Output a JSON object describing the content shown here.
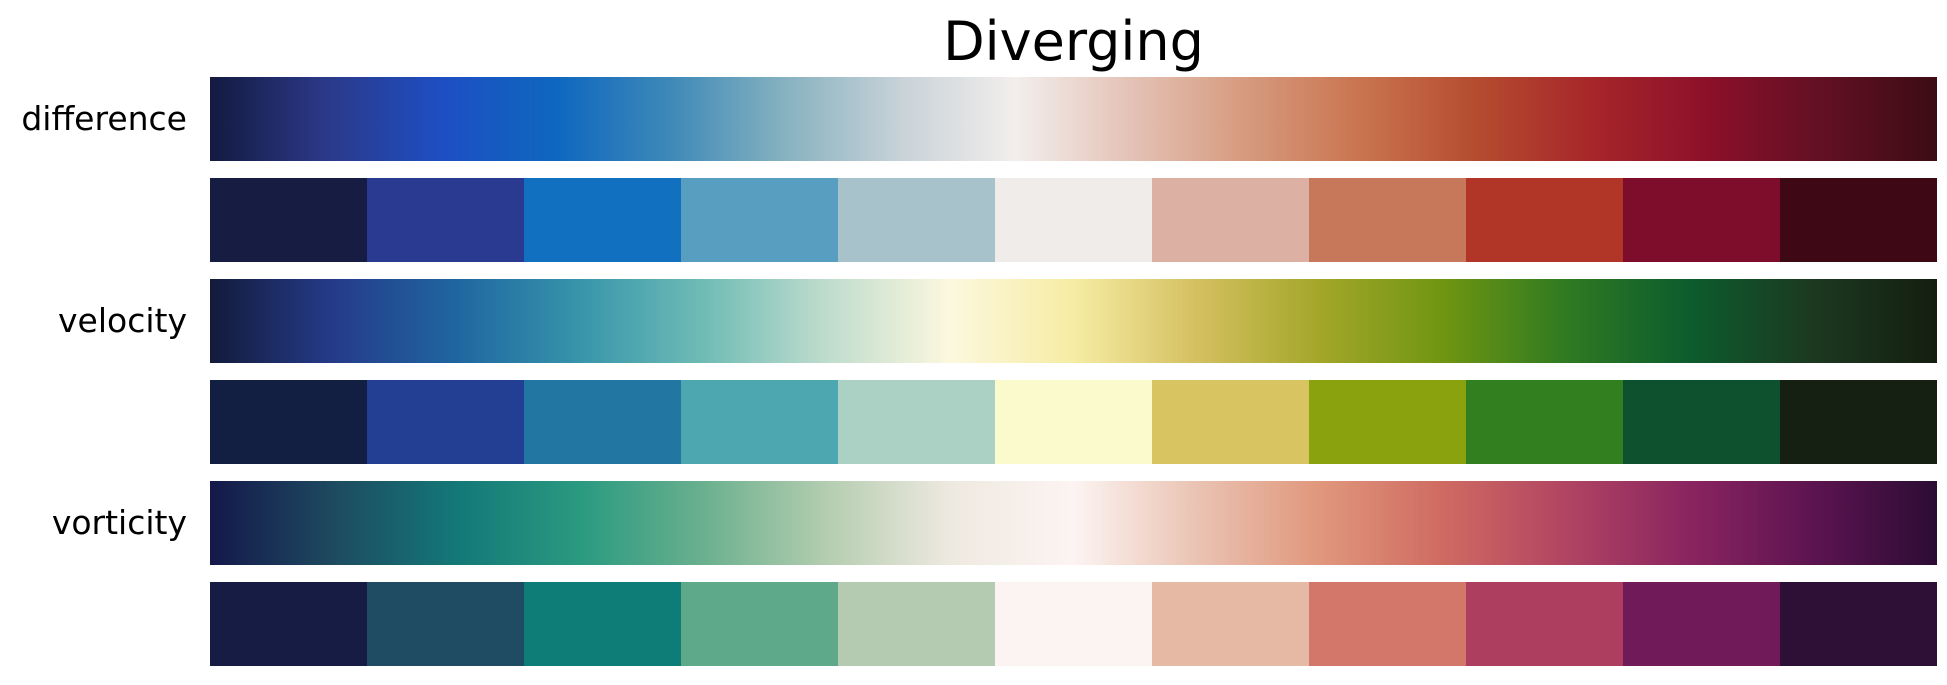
{
  "chart_data": {
    "type": "heatmap",
    "title": "Diverging",
    "colormaps": [
      {
        "name": "difference",
        "gradient": [
          "#141a40",
          "#2b3988",
          "#1e4ec2",
          "#0e67c0",
          "#3e89b8",
          "#87b2c0",
          "#c8d2d8",
          "#f2eeec",
          "#e4c2b6",
          "#d69a7e",
          "#c9744f",
          "#b54c2f",
          "#a7262a",
          "#8c102a",
          "#621023",
          "#3c0c14"
        ],
        "swatches": [
          "#171c43",
          "#293a90",
          "#1171c0",
          "#589ec0",
          "#a8c2cb",
          "#f0ecea",
          "#dcb0a3",
          "#c7785b",
          "#b23627",
          "#7e0d2c",
          "#3e0815"
        ]
      },
      {
        "name": "velocity",
        "gradient": [
          "#131b3b",
          "#253b8a",
          "#1f66a0",
          "#3795ab",
          "#6fbcb5",
          "#bfdccd",
          "#fcf8de",
          "#f6eca4",
          "#d4c060",
          "#a3a629",
          "#6f9511",
          "#2f7a22",
          "#0c5c2e",
          "#1c3920",
          "#141e10"
        ],
        "swatches": [
          "#131f42",
          "#223f93",
          "#2276a2",
          "#4da7b0",
          "#abd0c4",
          "#fbfacd",
          "#d8c562",
          "#8aa20e",
          "#317f1f",
          "#0e512e",
          "#152013"
        ]
      },
      {
        "name": "vorticity",
        "gradient": [
          "#14184a",
          "#1e4a60",
          "#137878",
          "#2a9a80",
          "#6ab08e",
          "#b4cdb0",
          "#eee9e0",
          "#fcf4f2",
          "#eac3b2",
          "#e0977c",
          "#cf6a62",
          "#b04462",
          "#8a2460",
          "#5c1450",
          "#2c0c34"
        ],
        "swatches": [
          "#161c44",
          "#1f4c62",
          "#0f7d77",
          "#5ea989",
          "#b4cbb1",
          "#fcf4f2",
          "#e5b9a3",
          "#d2776a",
          "#ae3e60",
          "#711a5a",
          "#2e0f35"
        ]
      }
    ]
  }
}
